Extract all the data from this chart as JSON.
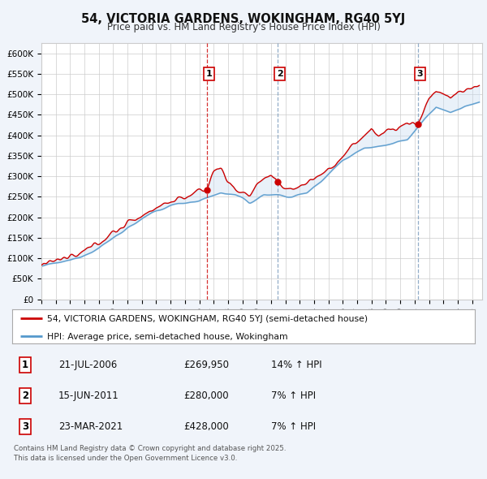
{
  "title": "54, VICTORIA GARDENS, WOKINGHAM, RG40 5YJ",
  "subtitle": "Price paid vs. HM Land Registry's House Price Index (HPI)",
  "ylim": [
    0,
    625000
  ],
  "yticks": [
    0,
    50000,
    100000,
    150000,
    200000,
    250000,
    300000,
    350000,
    400000,
    450000,
    500000,
    550000,
    600000
  ],
  "ytick_labels": [
    "£0",
    "£50K",
    "£100K",
    "£150K",
    "£200K",
    "£250K",
    "£300K",
    "£350K",
    "£400K",
    "£450K",
    "£500K",
    "£550K",
    "£600K"
  ],
  "sale_color": "#cc0000",
  "hpi_color": "#5599cc",
  "fill_color": "#c8dcf0",
  "sale_label": "54, VICTORIA GARDENS, WOKINGHAM, RG40 5YJ (semi-detached house)",
  "hpi_label": "HPI: Average price, semi-detached house, Wokingham",
  "sales": [
    {
      "date": 2006.54,
      "price": 269950,
      "label": "1",
      "vline_style": "red_dashed"
    },
    {
      "date": 2011.45,
      "price": 280000,
      "label": "2",
      "vline_style": "blue_dashed"
    },
    {
      "date": 2021.22,
      "price": 428000,
      "label": "3",
      "vline_style": "blue_dashed"
    }
  ],
  "sale_info": [
    {
      "num": "1",
      "date": "21-JUL-2006",
      "price": "£269,950",
      "hpi": "14% ↑ HPI"
    },
    {
      "num": "2",
      "date": "15-JUN-2011",
      "price": "£280,000",
      "hpi": "7% ↑ HPI"
    },
    {
      "num": "3",
      "date": "23-MAR-2021",
      "price": "£428,000",
      "hpi": "7% ↑ HPI"
    }
  ],
  "footnote": "Contains HM Land Registry data © Crown copyright and database right 2025.\nThis data is licensed under the Open Government Licence v3.0.",
  "background_color": "#f0f4fa",
  "plot_bg_color": "#ffffff",
  "grid_color": "#cccccc",
  "vline_red_color": "#cc0000",
  "vline_blue_color": "#7799bb"
}
